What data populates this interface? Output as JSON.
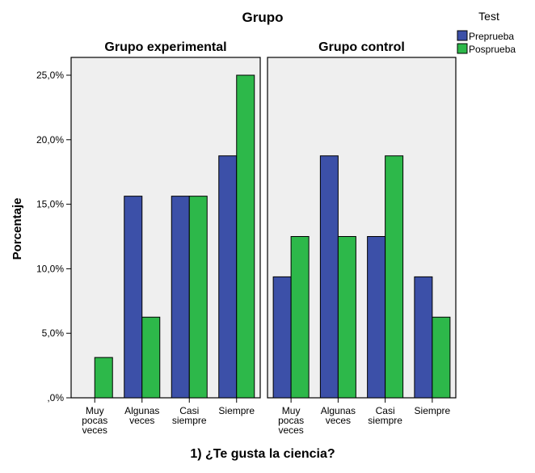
{
  "chart_data": {
    "type": "bar",
    "title": "Grupo",
    "xlabel": "1) ¿Te gusta la ciencia?",
    "ylabel": "Porcentaje",
    "ylim": [
      0,
      25
    ],
    "y_ticks": [
      0,
      5,
      10,
      15,
      20,
      25
    ],
    "y_tick_labels": [
      ",0%",
      "5,0%",
      "10,0%",
      "15,0%",
      "20,0%",
      "25,0%"
    ],
    "categories": [
      [
        "Muy",
        "pocas",
        "veces"
      ],
      [
        "Algunas",
        "veces"
      ],
      [
        "Casi",
        "siempre"
      ],
      [
        "Siempre"
      ]
    ],
    "legend": {
      "title": "Test",
      "position": "top-right",
      "entries": [
        {
          "name": "Preprueba",
          "color": "#3c50a8"
        },
        {
          "name": "Posprueba",
          "color": "#2db84a"
        }
      ]
    },
    "panels": [
      {
        "title": "Grupo experimental",
        "series": [
          {
            "name": "Preprueba",
            "values": [
              0,
              15.625,
              15.625,
              18.75
            ]
          },
          {
            "name": "Posprueba",
            "values": [
              3.125,
              6.25,
              15.625,
              25.0
            ]
          }
        ]
      },
      {
        "title": "Grupo control",
        "series": [
          {
            "name": "Preprueba",
            "values": [
              9.375,
              18.75,
              12.5,
              9.375
            ]
          },
          {
            "name": "Posprueba",
            "values": [
              12.5,
              12.5,
              18.75,
              6.25
            ]
          }
        ]
      }
    ],
    "grid": false,
    "panel_background": "#efefef"
  }
}
